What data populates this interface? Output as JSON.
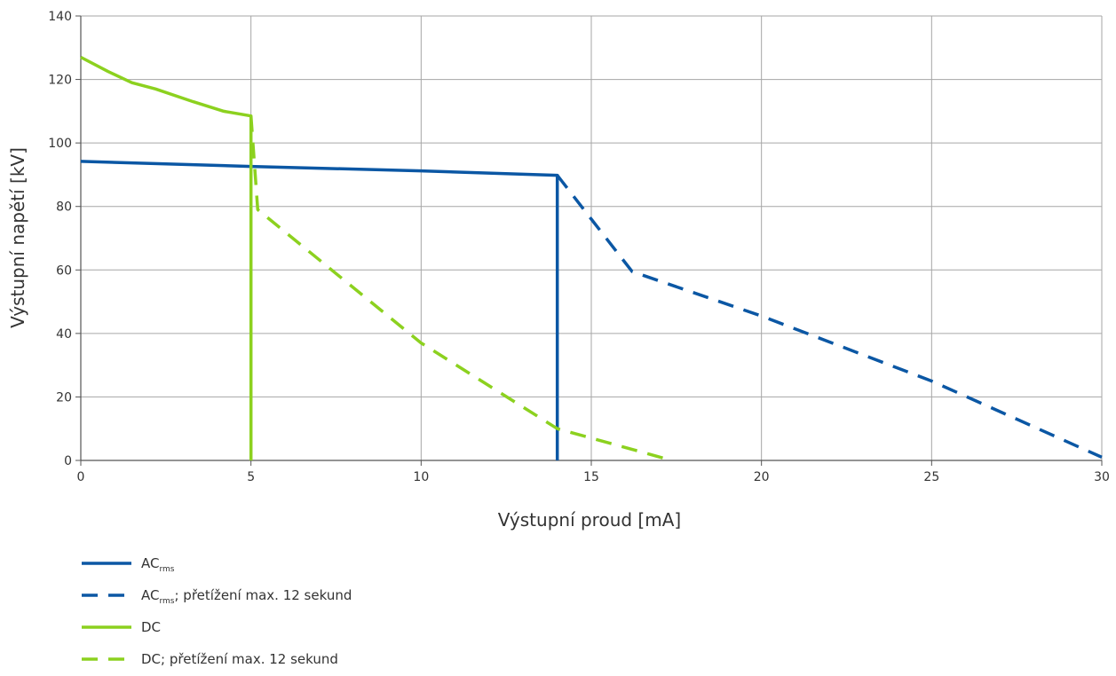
{
  "chart_data": {
    "type": "line",
    "title": "",
    "xlabel": "Výstupní proud [mA]",
    "ylabel": "Výstupní napětí [kV]",
    "xlim": [
      0,
      30
    ],
    "ylim": [
      0,
      140
    ],
    "xticks": [
      0,
      5,
      10,
      15,
      20,
      25,
      30
    ],
    "yticks": [
      0,
      20,
      40,
      60,
      80,
      100,
      120,
      140
    ],
    "grid": true,
    "legend_position": "bottom-left",
    "series": [
      {
        "name": "AC",
        "name_sub": "rms",
        "name_suffix": "",
        "color": "#0b57a4",
        "style": "solid",
        "points": [
          [
            0,
            94.2
          ],
          [
            5,
            92.6
          ],
          [
            10,
            91.2
          ],
          [
            14,
            89.8
          ],
          [
            14,
            0
          ]
        ]
      },
      {
        "name": "AC",
        "name_sub": "rms",
        "name_suffix": "; přetížení max. 12 sekund",
        "color": "#0b57a4",
        "style": "dashed",
        "points": [
          [
            14,
            89.8
          ],
          [
            15,
            76
          ],
          [
            16.2,
            59.5
          ],
          [
            20,
            45.5
          ],
          [
            25,
            25
          ],
          [
            30,
            1
          ]
        ]
      },
      {
        "name": "DC",
        "name_sub": "",
        "name_suffix": "",
        "color": "#8cd11f",
        "style": "solid",
        "points": [
          [
            0,
            127
          ],
          [
            0.8,
            122.5
          ],
          [
            1.5,
            119
          ],
          [
            2.2,
            117
          ],
          [
            3.3,
            113
          ],
          [
            4.2,
            110
          ],
          [
            5,
            108.5
          ],
          [
            5,
            0
          ]
        ]
      },
      {
        "name": "DC",
        "name_sub": "",
        "name_suffix": "; přetížení max. 12 sekund",
        "color": "#8cd11f",
        "style": "dashed",
        "points": [
          [
            5,
            108.5
          ],
          [
            5.2,
            79
          ],
          [
            10,
            37
          ],
          [
            14,
            10
          ],
          [
            17.2,
            0.5
          ]
        ]
      }
    ]
  }
}
